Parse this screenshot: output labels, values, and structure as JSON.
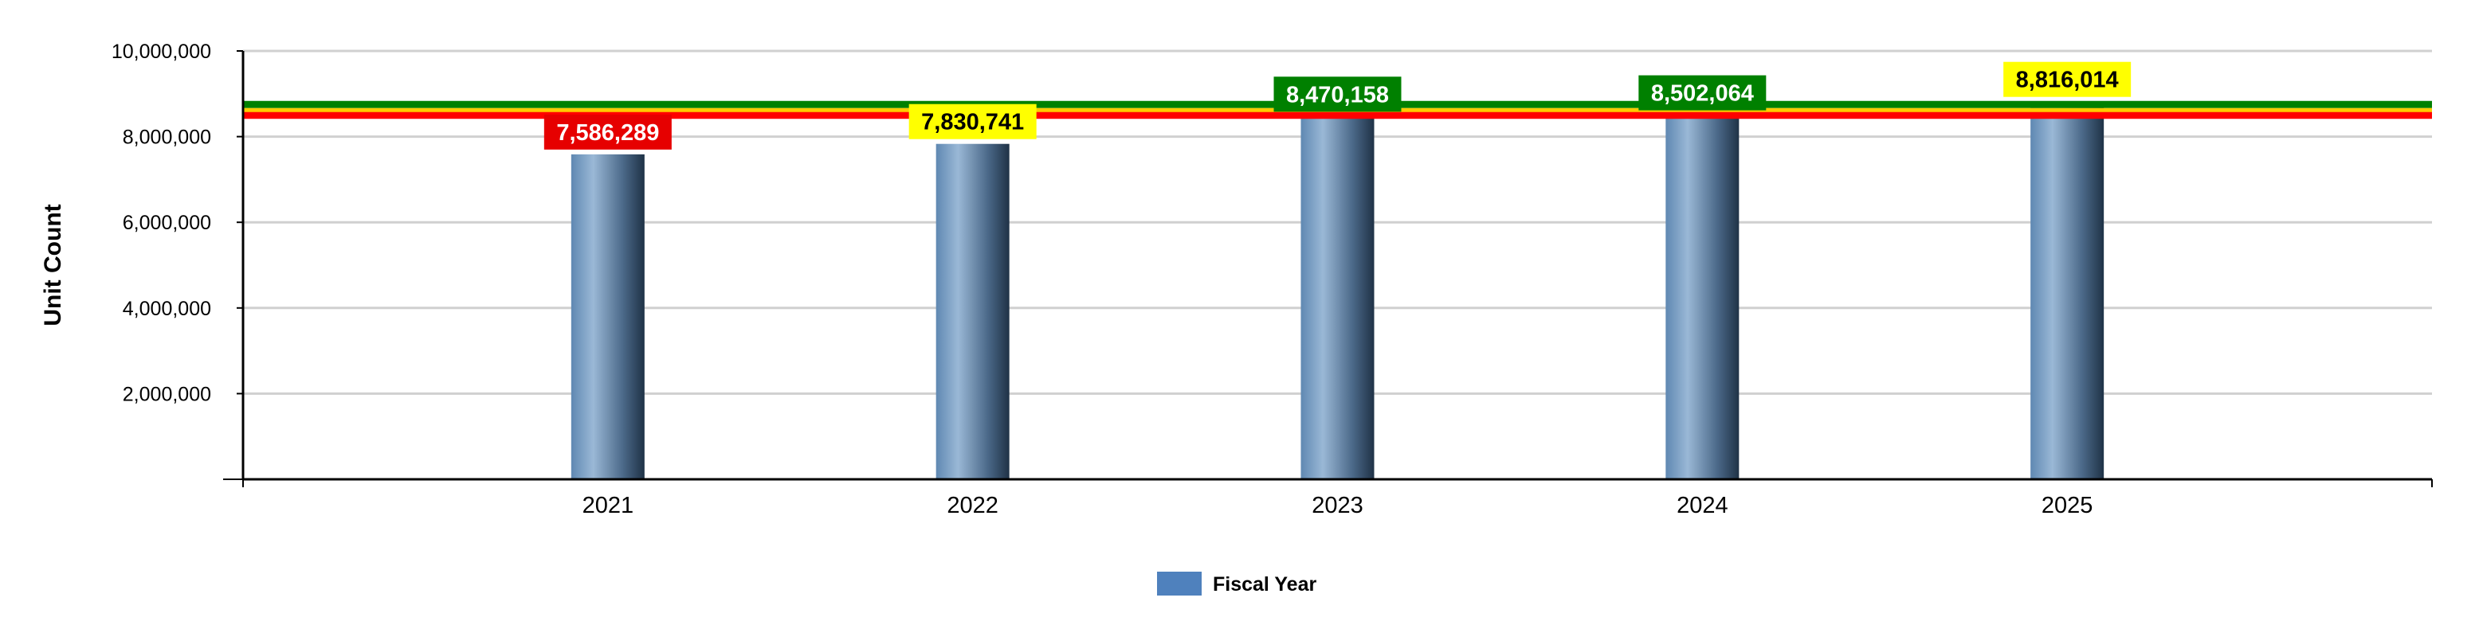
{
  "chart_data": {
    "type": "bar",
    "categories": [
      "2021",
      "2022",
      "2023",
      "2024",
      "2025"
    ],
    "series": [
      {
        "name": "Fiscal Year",
        "values": [
          7586289,
          7830741,
          8470158,
          8502064,
          8816014
        ],
        "data_labels": [
          "7,586,289",
          "7,830,741",
          "8,470,158",
          "8,502,064",
          "8,816,014"
        ],
        "label_colors": [
          "#e60000",
          "#ffff00",
          "#008000",
          "#008000",
          "#ffff00"
        ],
        "label_text_colors": [
          "#ffffff",
          "#000000",
          "#ffffff",
          "#ffffff",
          "#000000"
        ]
      }
    ],
    "reference_lines": [
      {
        "value": 8750000,
        "color": "#008000"
      },
      {
        "value": 8500000,
        "color": "#ff0000"
      },
      {
        "value": 8620000,
        "color": "#ffcc00"
      }
    ],
    "ylabel": "Unit Count",
    "xlabel": "",
    "ylim": [
      0,
      10000000
    ],
    "yticks": [
      0,
      2000000,
      4000000,
      6000000,
      8000000,
      10000000
    ],
    "ytick_labels": [
      "",
      "2,000,000",
      "4,000,000",
      "6,000,000",
      "8,000,000",
      "10,000,000"
    ],
    "grid": true,
    "legend_position": "bottom-center",
    "bar_color": "#4f81bd"
  }
}
